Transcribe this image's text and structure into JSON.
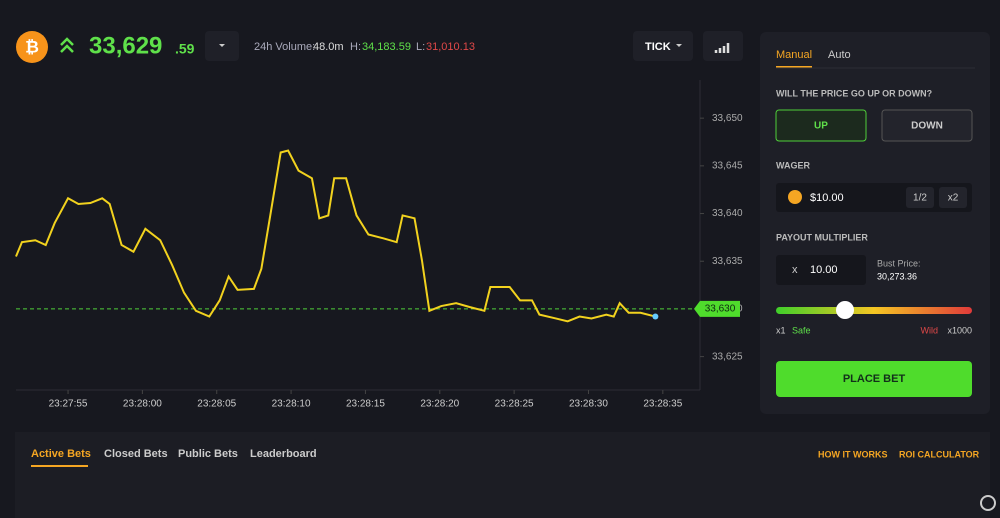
{
  "header": {
    "price_main": "33,629",
    "price_cents": ".59",
    "volume_label": "24h Volume:",
    "volume": "48.0m",
    "high_label": "H:",
    "high": "34,183.59",
    "low_label": "L:",
    "low": "31,010.13",
    "tick_button": "TICK"
  },
  "chart_data": {
    "type": "line",
    "x": [
      51.5,
      51.9,
      52.8,
      53.5,
      54.1,
      55.0,
      55.7,
      56.5,
      57.3,
      57.8,
      58.6,
      59.4,
      60.2,
      61.2,
      62.0,
      62.8,
      63.6,
      64.5,
      65.2,
      65.8,
      66.4,
      67.5,
      68.0,
      68.6,
      69.3,
      69.8,
      70.5,
      71.4,
      71.9,
      72.5,
      72.9,
      73.7,
      74.4,
      75.2,
      76.2,
      77.1,
      77.5,
      78.3,
      78.8,
      79.3,
      80.1,
      81.1,
      82.0,
      83.0,
      83.4,
      84.7,
      85.4,
      86.2,
      86.7,
      87.8,
      88.6,
      89.4,
      90.2,
      91.2,
      91.7,
      92.1,
      92.7,
      93.5,
      94.5
    ],
    "series": [
      {
        "color": "#f2d21e",
        "values": [
          33635.5,
          33637,
          33637.2,
          33636.7,
          33639,
          33641.6,
          33641,
          33641.1,
          33641.6,
          33641,
          33636.7,
          33636,
          33638.4,
          33637.2,
          33634.6,
          33631.7,
          33629.8,
          33629.2,
          33630.9,
          33633.4,
          33632,
          33632.1,
          33634.2,
          33639.8,
          33646.4,
          33646.6,
          33644.5,
          33643.7,
          33639.5,
          33639.8,
          33643.7,
          33643.7,
          33639.8,
          33637.8,
          33637.4,
          33637,
          33639.8,
          33639.5,
          33635.1,
          33629.8,
          33630.3,
          33630.6,
          33630.2,
          33629.8,
          33632.3,
          33632.3,
          33630.9,
          33630.9,
          33629.4,
          33629,
          33628.7,
          33629.2,
          33629,
          33629.4,
          33629.2,
          33630.6,
          33629.6,
          33629.6,
          33629.2
        ]
      }
    ],
    "xlim": [
      51.5,
      97.5
    ],
    "xticks": [
      {
        "value": 55,
        "label": "23:27:55"
      },
      {
        "value": 60,
        "label": "23:28:00"
      },
      {
        "value": 65,
        "label": "23:28:05"
      },
      {
        "value": 70,
        "label": "23:28:10"
      },
      {
        "value": 75,
        "label": "23:28:15"
      },
      {
        "value": 80,
        "label": "23:28:20"
      },
      {
        "value": 85,
        "label": "23:28:25"
      },
      {
        "value": 90,
        "label": "23:28:30"
      },
      {
        "value": 95,
        "label": "23:28:35"
      }
    ],
    "ylim": [
      33621.5,
      33654
    ],
    "yticks": [
      {
        "value": 33625,
        "label": "33,625"
      },
      {
        "value": 33630,
        "label": "33,630"
      },
      {
        "value": 33635,
        "label": "33,635"
      },
      {
        "value": 33640,
        "label": "33,640"
      },
      {
        "value": 33645,
        "label": "33,645"
      },
      {
        "value": 33650,
        "label": "33,650"
      }
    ],
    "current_price": {
      "value": 33630,
      "label": "33,630"
    }
  },
  "panel": {
    "tabs": [
      "Manual",
      "Auto"
    ],
    "question": "WILL THE PRICE GO UP OR DOWN?",
    "up": "UP",
    "down": "DOWN",
    "wager_label": "WAGER",
    "wager": "$10.00",
    "half": "1/2",
    "double": "x2",
    "payout_label": "PAYOUT MULTIPLIER",
    "multiplier_x": "x",
    "multiplier": "10.00",
    "bust_label": "Bust Price:",
    "bust_price": "30,273.36",
    "safe_x": "x1",
    "safe": "Safe",
    "wild": "Wild",
    "wild_x": "x1000",
    "place_bet": "PLACE BET"
  },
  "bets": {
    "tabs": [
      "Active Bets",
      "Closed Bets",
      "Public Bets",
      "Leaderboard"
    ],
    "links": [
      "HOW IT WORKS",
      "ROI CALCULATOR"
    ]
  }
}
